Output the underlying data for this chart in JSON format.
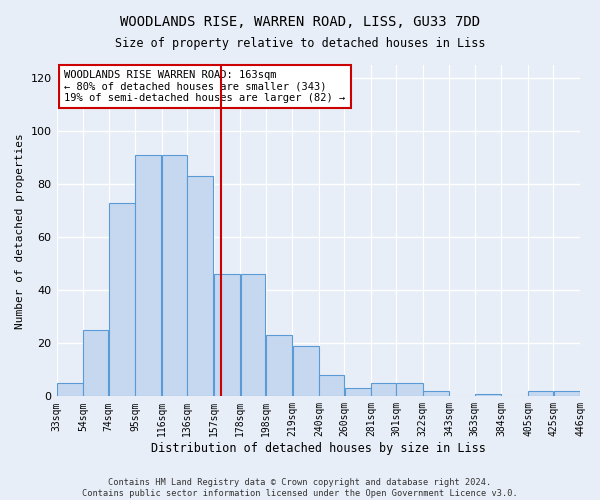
{
  "title": "WOODLANDS RISE, WARREN ROAD, LISS, GU33 7DD",
  "subtitle": "Size of property relative to detached houses in Liss",
  "xlabel": "Distribution of detached houses by size in Liss",
  "ylabel": "Number of detached properties",
  "bar_color": "#c5d8f0",
  "bar_edge_color": "#5b9bd5",
  "background_color": "#e8eef7",
  "grid_color": "#ffffff",
  "vline_color": "#cc0000",
  "vline_x": 163,
  "annotation_text": "WOODLANDS RISE WARREN ROAD: 163sqm\n← 80% of detached houses are smaller (343)\n19% of semi-detached houses are larger (82) →",
  "annotation_box_color": "#ffffff",
  "annotation_box_edge_color": "#cc0000",
  "footer_text": "Contains HM Land Registry data © Crown copyright and database right 2024.\nContains public sector information licensed under the Open Government Licence v3.0.",
  "bin_edges": [
    33,
    54,
    74,
    95,
    116,
    136,
    157,
    178,
    198,
    219,
    240,
    260,
    281,
    301,
    322,
    343,
    363,
    384,
    405,
    425,
    446
  ],
  "bin_labels": [
    "33sqm",
    "54sqm",
    "74sqm",
    "95sqm",
    "116sqm",
    "136sqm",
    "157sqm",
    "178sqm",
    "198sqm",
    "219sqm",
    "240sqm",
    "260sqm",
    "281sqm",
    "301sqm",
    "322sqm",
    "343sqm",
    "363sqm",
    "384sqm",
    "405sqm",
    "425sqm",
    "446sqm"
  ],
  "counts": [
    5,
    25,
    73,
    91,
    91,
    83,
    46,
    46,
    23,
    19,
    8,
    3,
    5,
    5,
    2,
    0,
    1,
    0,
    2,
    2
  ],
  "ylim": [
    0,
    125
  ],
  "yticks": [
    0,
    20,
    40,
    60,
    80,
    100,
    120
  ]
}
